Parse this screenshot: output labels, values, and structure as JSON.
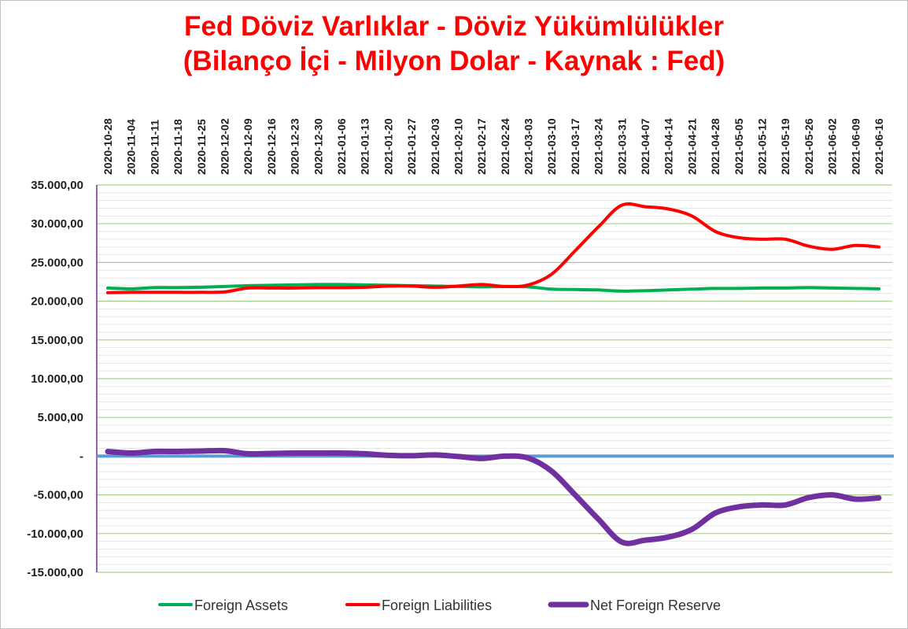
{
  "chart_data": {
    "type": "line",
    "title": "Fed Döviz Varlıklar - Döviz Yükümlülükler",
    "subtitle": "(Bilanço İçi - Milyon Dolar - Kaynak : Fed)",
    "x": [
      "2020-10-28",
      "2020-11-04",
      "2020-11-11",
      "2020-11-18",
      "2020-11-25",
      "2020-12-02",
      "2020-12-09",
      "2020-12-16",
      "2020-12-23",
      "2020-12-30",
      "2021-01-06",
      "2021-01-13",
      "2021-01-20",
      "2021-01-27",
      "2021-02-03",
      "2021-02-10",
      "2021-02-17",
      "2021-02-24",
      "2021-03-03",
      "2021-03-10",
      "2021-03-17",
      "2021-03-24",
      "2021-03-31",
      "2021-04-07",
      "2021-04-14",
      "2021-04-21",
      "2021-04-28",
      "2021-05-05",
      "2021-05-12",
      "2021-05-19",
      "2021-05-26",
      "2021-06-02",
      "2021-06-09",
      "2021-06-16"
    ],
    "ylim": [
      -15000,
      35000
    ],
    "yticks": [
      -15000,
      -10000,
      -5000,
      0,
      5000,
      10000,
      15000,
      20000,
      25000,
      30000,
      35000
    ],
    "ytick_labels": [
      "-15.000,00",
      "-10.000,00",
      "-5.000,00",
      "-",
      "5.000,00",
      "10.000,00",
      "15.000,00",
      "20.000,00",
      "25.000,00",
      "30.000,00",
      "35.000,00"
    ],
    "grid": true,
    "legend": "bottom",
    "series": [
      {
        "name": "Foreign Assets",
        "color": "#00b050",
        "values": [
          21700,
          21600,
          21750,
          21750,
          21800,
          21900,
          22000,
          22050,
          22100,
          22150,
          22150,
          22100,
          22050,
          22000,
          21950,
          21900,
          21850,
          21900,
          21850,
          21550,
          21500,
          21450,
          21300,
          21350,
          21450,
          21550,
          21650,
          21650,
          21700,
          21700,
          21750,
          21700,
          21650,
          21600
        ]
      },
      {
        "name": "Foreign Liabilities",
        "color": "#ff0000",
        "values": [
          21100,
          21150,
          21150,
          21150,
          21150,
          21200,
          21700,
          21700,
          21700,
          21750,
          21750,
          21800,
          21950,
          21950,
          21800,
          21950,
          22150,
          21900,
          22100,
          23500,
          26500,
          29600,
          32400,
          32200,
          31900,
          31000,
          29000,
          28200,
          28000,
          28000,
          27100,
          26700,
          27200,
          27000
        ]
      },
      {
        "name": "Net Foreign Reserve",
        "color": "#7030a0",
        "values": [
          600,
          400,
          600,
          600,
          650,
          700,
          300,
          350,
          400,
          400,
          400,
          300,
          100,
          50,
          150,
          -50,
          -300,
          0,
          -250,
          -1950,
          -5000,
          -8150,
          -11100,
          -10850,
          -10450,
          -9450,
          -7350,
          -6550,
          -6300,
          -6300,
          -5350,
          -5000,
          -5550,
          -5400
        ]
      }
    ],
    "zero_line_color": "#5b9bd5"
  }
}
